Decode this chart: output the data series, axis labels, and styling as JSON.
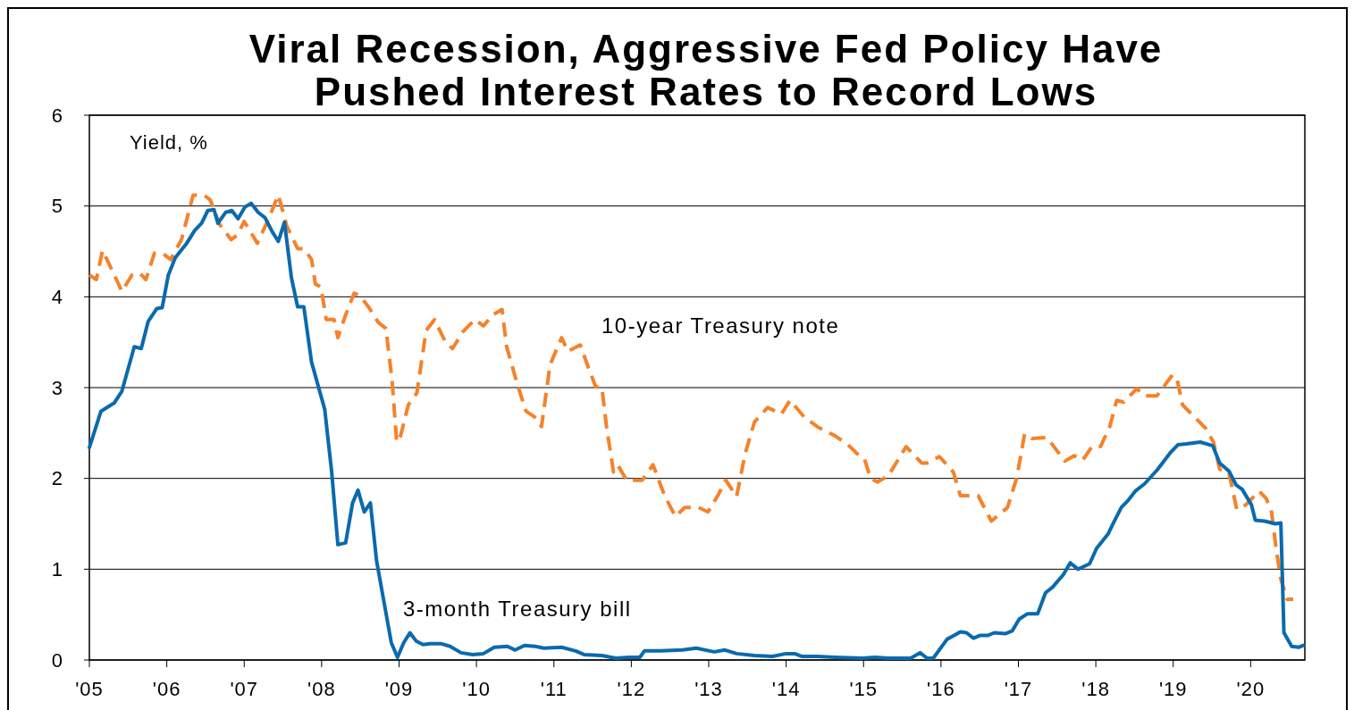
{
  "chart_data": {
    "type": "line",
    "title": "Viral Recession, Aggressive Fed Policy Have Pushed Interest Rates to Record Lows",
    "ylabel": "Yield, %",
    "xlim": [
      2005,
      2020.7
    ],
    "ylim": [
      0,
      6
    ],
    "yticks": [
      0,
      1,
      2,
      3,
      4,
      5,
      6
    ],
    "xticks": [
      {
        "value": 2005,
        "label": "'05"
      },
      {
        "value": 2006,
        "label": "'06"
      },
      {
        "value": 2007,
        "label": "'07"
      },
      {
        "value": 2008,
        "label": "'08"
      },
      {
        "value": 2009,
        "label": "'09"
      },
      {
        "value": 2010,
        "label": "'10"
      },
      {
        "value": 2011,
        "label": "'11"
      },
      {
        "value": 2012,
        "label": "'12"
      },
      {
        "value": 2013,
        "label": "'13"
      },
      {
        "value": 2014,
        "label": "'14"
      },
      {
        "value": 2015,
        "label": "'15"
      },
      {
        "value": 2016,
        "label": "'16"
      },
      {
        "value": 2017,
        "label": "'17"
      },
      {
        "value": 2018,
        "label": "'18"
      },
      {
        "value": 2019,
        "label": "'19"
      },
      {
        "value": 2020,
        "label": "'20"
      }
    ],
    "grid": "y",
    "legend": false,
    "marker": "none",
    "series": [
      {
        "name": "10-year Treasury note",
        "color": "#f5822a",
        "line_style": "dashed",
        "x": [
          2005.0,
          2005.09,
          2005.17,
          2005.3,
          2005.42,
          2005.55,
          2005.65,
          2005.73,
          2005.84,
          2005.96,
          2006.05,
          2006.19,
          2006.34,
          2006.48,
          2006.56,
          2006.68,
          2006.83,
          2006.91,
          2007.0,
          2007.17,
          2007.3,
          2007.44,
          2007.55,
          2007.69,
          2007.77,
          2007.87,
          2007.92,
          2007.99,
          2008.06,
          2008.16,
          2008.21,
          2008.31,
          2008.42,
          2008.5,
          2008.62,
          2008.73,
          2008.83,
          2008.91,
          2008.97,
          2009.02,
          2009.12,
          2009.23,
          2009.35,
          2009.46,
          2009.6,
          2009.69,
          2009.83,
          2009.98,
          2010.09,
          2010.21,
          2010.33,
          2010.39,
          2010.53,
          2010.64,
          2010.78,
          2010.84,
          2010.95,
          2011.1,
          2011.18,
          2011.34,
          2011.45,
          2011.54,
          2011.62,
          2011.68,
          2011.77,
          2011.83,
          2011.94,
          2012.14,
          2012.28,
          2012.43,
          2012.57,
          2012.69,
          2012.87,
          2012.99,
          2013.13,
          2013.22,
          2013.36,
          2013.47,
          2013.59,
          2013.76,
          2013.94,
          2014.05,
          2014.23,
          2014.4,
          2014.51,
          2014.63,
          2014.8,
          2014.92,
          2015.01,
          2015.09,
          2015.18,
          2015.32,
          2015.55,
          2015.75,
          2015.82,
          2015.98,
          2016.16,
          2016.25,
          2016.48,
          2016.65,
          2016.86,
          2016.98,
          2017.08,
          2017.17,
          2017.37,
          2017.6,
          2017.72,
          2017.83,
          2017.95,
          2018.06,
          2018.18,
          2018.27,
          2018.36,
          2018.53,
          2018.62,
          2018.79,
          2018.99,
          2019.05,
          2019.12,
          2019.34,
          2019.42,
          2019.52,
          2019.6,
          2019.72,
          2019.82,
          2019.94,
          2020.11,
          2020.2,
          2020.27,
          2020.33,
          2020.39,
          2020.47,
          2020.55
        ],
        "values": [
          4.24,
          4.19,
          4.51,
          4.28,
          4.06,
          4.24,
          4.26,
          4.19,
          4.48,
          4.47,
          4.41,
          4.63,
          5.12,
          5.12,
          5.07,
          4.8,
          4.63,
          4.68,
          4.83,
          4.59,
          4.83,
          5.12,
          4.78,
          4.53,
          4.53,
          4.41,
          4.14,
          4.11,
          3.75,
          3.75,
          3.55,
          3.8,
          4.04,
          4.01,
          3.87,
          3.72,
          3.65,
          3.08,
          2.4,
          2.47,
          2.81,
          2.94,
          3.63,
          3.75,
          3.5,
          3.43,
          3.62,
          3.75,
          3.68,
          3.8,
          3.86,
          3.45,
          3.03,
          2.74,
          2.66,
          2.57,
          3.25,
          3.55,
          3.4,
          3.47,
          3.21,
          3.01,
          3.0,
          2.57,
          2.07,
          2.14,
          1.98,
          1.98,
          2.15,
          1.81,
          1.58,
          1.68,
          1.68,
          1.63,
          1.83,
          1.98,
          1.8,
          2.27,
          2.62,
          2.78,
          2.71,
          2.86,
          2.68,
          2.57,
          2.52,
          2.47,
          2.37,
          2.27,
          2.22,
          2.0,
          1.96,
          2.03,
          2.35,
          2.17,
          2.17,
          2.24,
          2.07,
          1.81,
          1.81,
          1.53,
          1.68,
          2.01,
          2.49,
          2.44,
          2.45,
          2.19,
          2.25,
          2.2,
          2.35,
          2.35,
          2.57,
          2.86,
          2.84,
          2.99,
          2.91,
          2.91,
          3.14,
          3.09,
          2.81,
          2.62,
          2.55,
          2.4,
          2.1,
          2.06,
          1.66,
          1.71,
          1.86,
          1.78,
          1.63,
          1.22,
          0.89,
          0.67,
          0.67
        ]
      },
      {
        "name": "3-month Treasury bill",
        "color": "#0a6aad",
        "line_style": "solid",
        "x": [
          2005.0,
          2005.15,
          2005.32,
          2005.42,
          2005.58,
          2005.67,
          2005.76,
          2005.87,
          2005.94,
          2006.02,
          2006.11,
          2006.25,
          2006.36,
          2006.45,
          2006.53,
          2006.61,
          2006.66,
          2006.76,
          2006.84,
          2006.92,
          2007.01,
          2007.09,
          2007.18,
          2007.27,
          2007.36,
          2007.44,
          2007.52,
          2007.61,
          2007.69,
          2007.77,
          2007.87,
          2008.04,
          2008.13,
          2008.21,
          2008.31,
          2008.4,
          2008.47,
          2008.55,
          2008.63,
          2008.71,
          2008.9,
          2008.98,
          2009.06,
          2009.14,
          2009.22,
          2009.31,
          2009.4,
          2009.54,
          2009.66,
          2009.8,
          2009.95,
          2010.09,
          2010.23,
          2010.4,
          2010.5,
          2010.62,
          2010.76,
          2010.87,
          2011.1,
          2011.28,
          2011.39,
          2011.62,
          2011.8,
          2011.97,
          2012.11,
          2012.17,
          2012.38,
          2012.66,
          2012.84,
          2013.07,
          2013.21,
          2013.36,
          2013.59,
          2013.82,
          2014.0,
          2014.11,
          2014.2,
          2014.4,
          2014.63,
          2014.98,
          2015.15,
          2015.32,
          2015.61,
          2015.73,
          2015.82,
          2015.9,
          2016.08,
          2016.17,
          2016.25,
          2016.33,
          2016.42,
          2016.5,
          2016.6,
          2016.69,
          2016.83,
          2016.92,
          2017.01,
          2017.12,
          2017.25,
          2017.35,
          2017.44,
          2017.58,
          2017.67,
          2017.77,
          2017.92,
          2018.01,
          2018.16,
          2018.24,
          2018.33,
          2018.42,
          2018.51,
          2018.63,
          2018.79,
          2018.96,
          2019.06,
          2019.17,
          2019.35,
          2019.51,
          2019.6,
          2019.72,
          2019.81,
          2019.89,
          2020.01,
          2020.06,
          2020.18,
          2020.32,
          2020.39,
          2020.43,
          2020.53,
          2020.62,
          2020.68
        ],
        "values": [
          2.34,
          2.74,
          2.83,
          2.96,
          3.45,
          3.43,
          3.73,
          3.87,
          3.88,
          4.24,
          4.43,
          4.58,
          4.73,
          4.81,
          4.95,
          4.96,
          4.81,
          4.93,
          4.95,
          4.86,
          4.99,
          5.03,
          4.93,
          4.87,
          4.72,
          4.61,
          4.82,
          4.21,
          3.89,
          3.89,
          3.28,
          2.76,
          2.07,
          1.27,
          1.29,
          1.73,
          1.87,
          1.63,
          1.73,
          1.09,
          0.19,
          0.03,
          0.19,
          0.3,
          0.21,
          0.17,
          0.18,
          0.18,
          0.15,
          0.08,
          0.06,
          0.07,
          0.14,
          0.15,
          0.11,
          0.16,
          0.15,
          0.13,
          0.14,
          0.1,
          0.06,
          0.05,
          0.02,
          0.03,
          0.03,
          0.1,
          0.1,
          0.11,
          0.13,
          0.09,
          0.11,
          0.07,
          0.05,
          0.04,
          0.07,
          0.07,
          0.04,
          0.04,
          0.03,
          0.02,
          0.03,
          0.02,
          0.02,
          0.08,
          0.02,
          0.02,
          0.23,
          0.27,
          0.31,
          0.3,
          0.24,
          0.27,
          0.27,
          0.3,
          0.29,
          0.32,
          0.45,
          0.51,
          0.51,
          0.74,
          0.8,
          0.94,
          1.07,
          1.0,
          1.06,
          1.23,
          1.39,
          1.53,
          1.68,
          1.76,
          1.86,
          1.94,
          2.09,
          2.28,
          2.37,
          2.38,
          2.4,
          2.36,
          2.17,
          2.08,
          1.93,
          1.88,
          1.71,
          1.54,
          1.53,
          1.5,
          1.51,
          0.3,
          0.15,
          0.14,
          0.16
        ]
      }
    ]
  }
}
